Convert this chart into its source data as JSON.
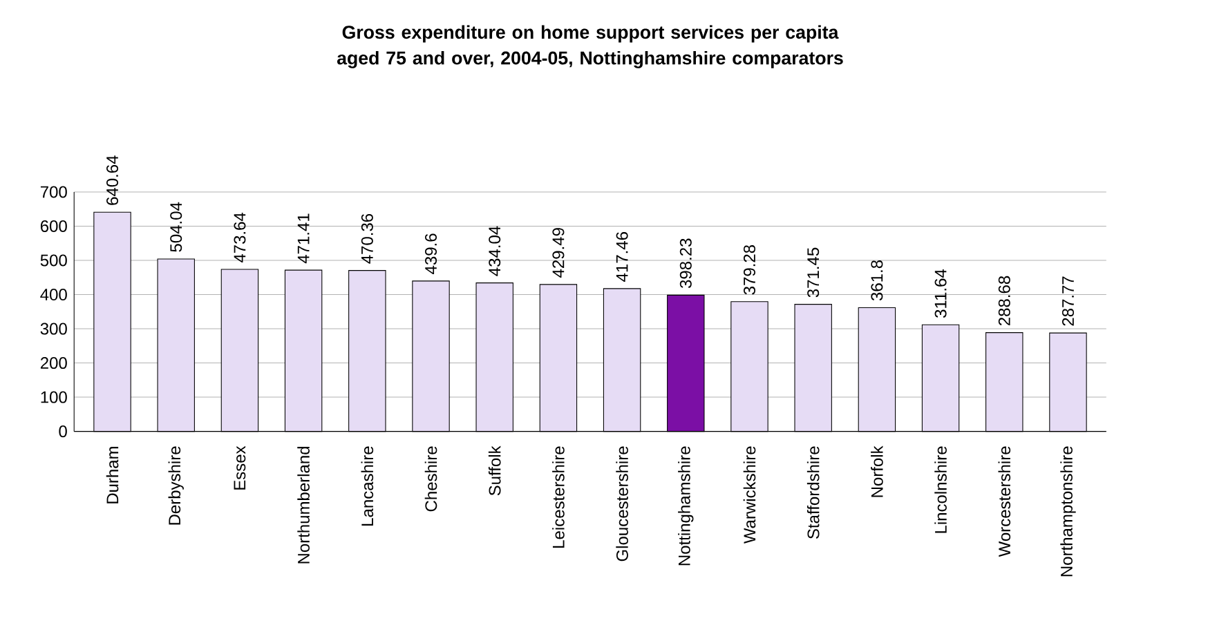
{
  "chart_data": {
    "type": "bar",
    "title": "Gross expenditure on home support services per capita aged 75 and over, 2004-05, Nottinghamshire comparators",
    "categories": [
      "Durham",
      "Derbyshire",
      "Essex",
      "Northumberland",
      "Lancashire",
      "Cheshire",
      "Suffolk",
      "Leicestershire",
      "Gloucestershire",
      "Nottinghamshire",
      "Warwickshire",
      "Staffordshire",
      "Norfolk",
      "Lincolnshire",
      "Worcestershire",
      "Northamptonshire"
    ],
    "values": [
      640.64,
      504.04,
      473.64,
      471.41,
      470.36,
      439.6,
      434.04,
      429.49,
      417.46,
      398.23,
      379.28,
      371.45,
      361.8,
      311.64,
      288.68,
      287.77
    ],
    "colors": [
      "#e6dcf5",
      "#e6dcf5",
      "#e6dcf5",
      "#e6dcf5",
      "#e6dcf5",
      "#e6dcf5",
      "#e6dcf5",
      "#e6dcf5",
      "#e6dcf5",
      "#7b0fa5",
      "#e6dcf5",
      "#e6dcf5",
      "#e6dcf5",
      "#e6dcf5",
      "#e6dcf5",
      "#e6dcf5"
    ],
    "ylim": [
      0,
      700
    ],
    "yticks": [
      0,
      100,
      200,
      300,
      400,
      500,
      600,
      700
    ],
    "grid": "y",
    "data_labels": true
  }
}
